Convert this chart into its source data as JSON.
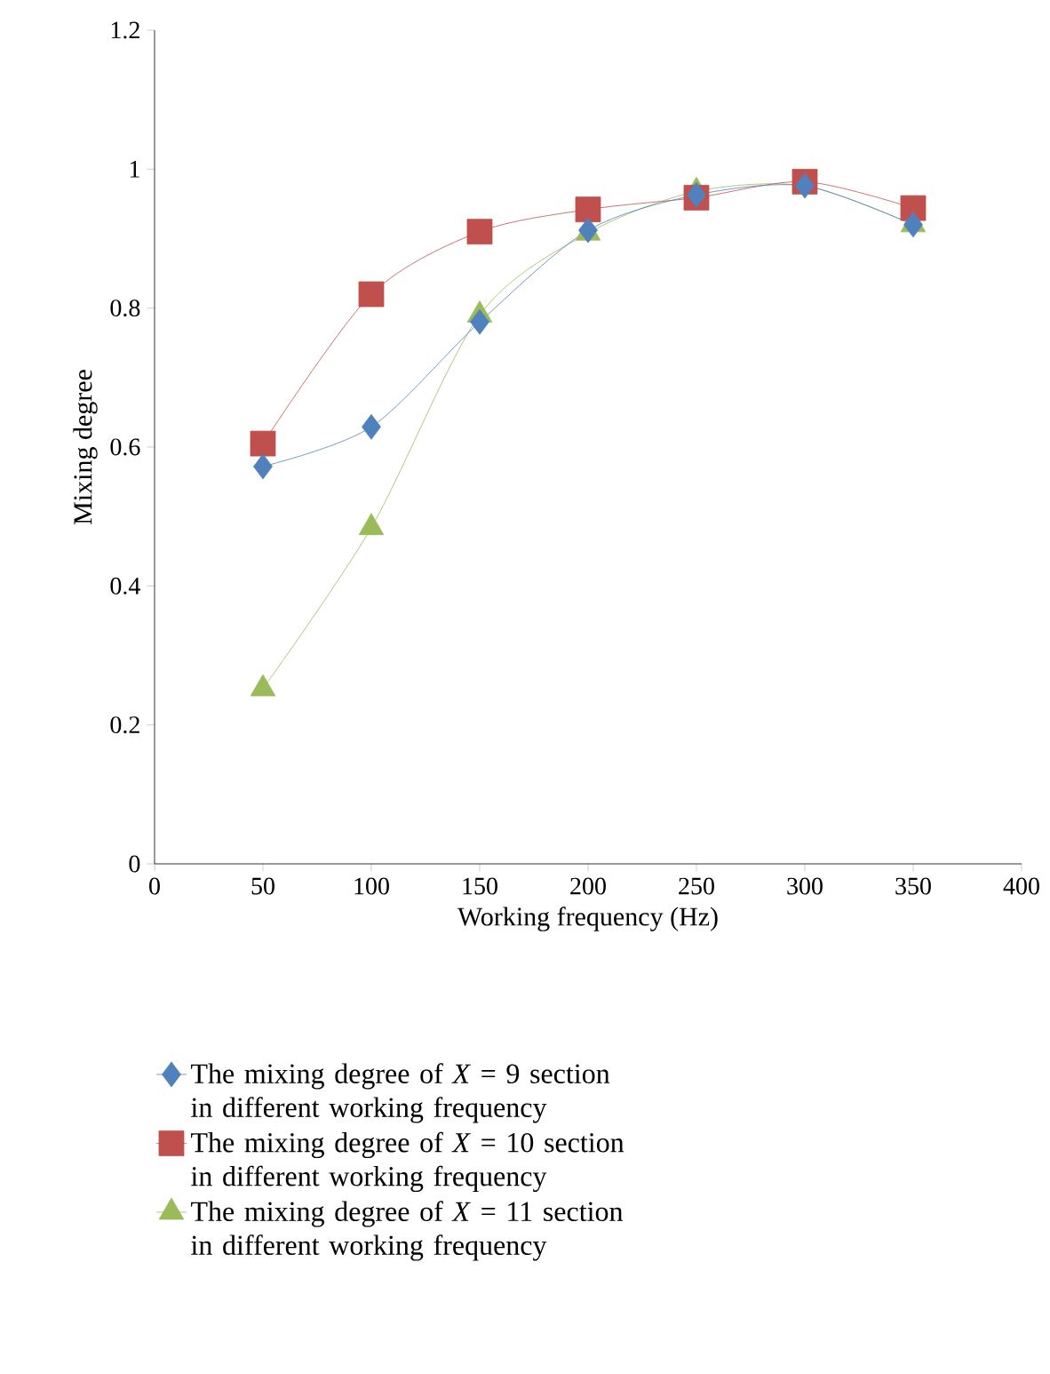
{
  "chart_data": {
    "type": "line",
    "xlabel": "Working frequency (Hz)",
    "ylabel": "Mixing degree",
    "x": [
      50,
      100,
      150,
      200,
      250,
      300,
      350
    ],
    "series": [
      {
        "name": "The mixing degree of *X* = 9 section in different working frequency",
        "color": "#4f81bd",
        "marker": "diamond",
        "values": [
          0.572,
          0.629,
          0.78,
          0.912,
          0.963,
          0.976,
          0.92
        ]
      },
      {
        "name": "The mixing degree of *X* = 10 section in different working frequency",
        "color": "#c0504d",
        "marker": "square",
        "values": [
          0.605,
          0.82,
          0.91,
          0.942,
          0.959,
          0.982,
          0.944
        ]
      },
      {
        "name": "The mixing degree of *X* = 11 section in different working frequency",
        "color": "#9bbb59",
        "marker": "triangle",
        "values": [
          0.252,
          0.484,
          0.79,
          0.908,
          0.968,
          0.976,
          0.92
        ]
      }
    ],
    "xlim": [
      0,
      400
    ],
    "xticks": [
      0,
      50,
      100,
      150,
      200,
      250,
      300,
      350,
      400
    ],
    "ylim": [
      0,
      1.2
    ],
    "yticks": [
      0,
      0.2,
      0.4,
      0.6,
      0.8,
      1,
      1.2
    ],
    "grid": false,
    "legend": "bottom",
    "line_style": "solid"
  }
}
